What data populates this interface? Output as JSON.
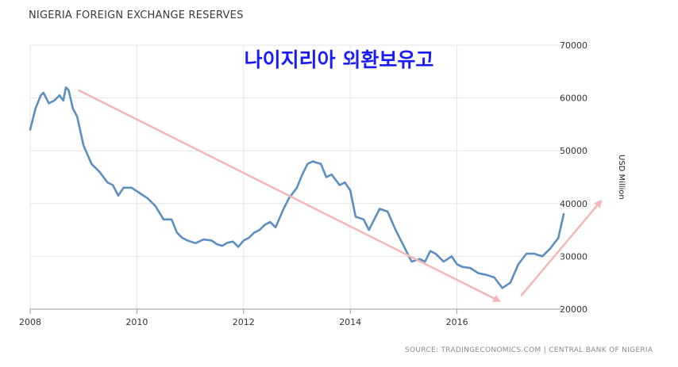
{
  "chart_data": {
    "type": "line",
    "title": "NIGERIA FOREIGN EXCHANGE RESERVES",
    "overlay_title": "나이지리아 외환보유고",
    "ylabel": "USD Million",
    "source": "SOURCE: TRADINGECONOMICS.COM | CENTRAL BANK OF NIGERIA",
    "xlim": [
      2008,
      2018
    ],
    "ylim": [
      20000,
      70000
    ],
    "x_ticks": [
      "2008",
      "2010",
      "2012",
      "2014",
      "2016"
    ],
    "y_ticks": [
      "20000",
      "30000",
      "40000",
      "50000",
      "60000",
      "70000"
    ],
    "grid": true,
    "line_color": "#5b8fc0",
    "arrow_color": "#f4b6b6",
    "series": [
      {
        "x": [
          2008.0,
          2008.1,
          2008.2,
          2008.25,
          2008.35,
          2008.45,
          2008.55,
          2008.62,
          2008.67,
          2008.72,
          2008.8,
          2008.88,
          2009.0,
          2009.15,
          2009.3,
          2009.45,
          2009.55,
          2009.65,
          2009.75,
          2009.9,
          2010.05,
          2010.2,
          2010.35,
          2010.5,
          2010.65,
          2010.75,
          2010.85,
          2010.95,
          2011.1,
          2011.25,
          2011.4,
          2011.5,
          2011.6,
          2011.7,
          2011.8,
          2011.9,
          2012.0,
          2012.1,
          2012.2,
          2012.3,
          2012.4,
          2012.5,
          2012.6,
          2012.75,
          2012.85,
          2013.0,
          2013.1,
          2013.2,
          2013.3,
          2013.35,
          2013.45,
          2013.55,
          2013.65,
          2013.8,
          2013.9,
          2014.0,
          2014.1,
          2014.25,
          2014.35,
          2014.45,
          2014.55,
          2014.7,
          2014.85,
          2015.0,
          2015.15,
          2015.3,
          2015.4,
          2015.5,
          2015.6,
          2015.75,
          2015.9,
          2016.0,
          2016.1,
          2016.25,
          2016.4,
          2016.55,
          2016.7,
          2016.85,
          2017.0,
          2017.15,
          2017.3,
          2017.45,
          2017.6,
          2017.75,
          2017.9,
          2018.0
        ],
        "values": [
          54000,
          58000,
          60500,
          61000,
          59000,
          59500,
          60500,
          59500,
          62000,
          61500,
          58000,
          56500,
          51000,
          47500,
          46000,
          44000,
          43500,
          41500,
          43000,
          43000,
          42000,
          41000,
          39500,
          37000,
          37000,
          34500,
          33500,
          33000,
          32500,
          33200,
          33000,
          32300,
          32000,
          32600,
          32800,
          31800,
          33000,
          33500,
          34500,
          35000,
          36000,
          36500,
          35500,
          39000,
          41000,
          43000,
          45500,
          47500,
          48000,
          47800,
          47500,
          45000,
          45500,
          43500,
          44000,
          42500,
          37500,
          37000,
          35000,
          37000,
          39000,
          38500,
          35000,
          32000,
          29000,
          29500,
          29000,
          31000,
          30500,
          29000,
          30000,
          28500,
          28000,
          27800,
          26800,
          26500,
          26000,
          24000,
          25000,
          28500,
          30500,
          30500,
          30000,
          31500,
          33500,
          38000
        ]
      }
    ],
    "annotations": [
      {
        "type": "arrow",
        "from": [
          2008.9,
          61500
        ],
        "to": [
          2016.8,
          21500
        ]
      },
      {
        "type": "arrow",
        "from": [
          2017.2,
          22500
        ],
        "to": [
          2018.7,
          40500
        ]
      }
    ]
  }
}
